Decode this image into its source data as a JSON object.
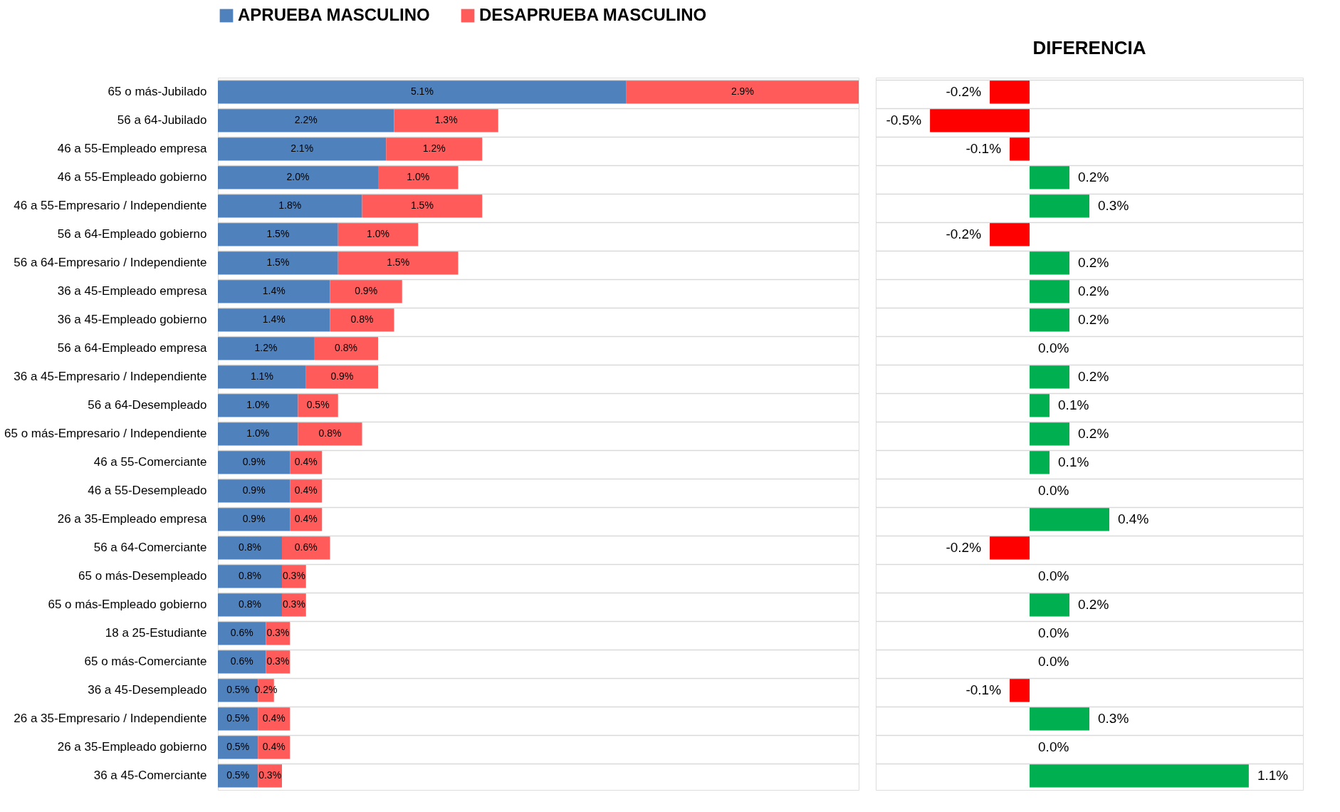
{
  "chart_data": [
    {
      "type": "bar",
      "orientation": "horizontal",
      "stacked": true,
      "legend": "top",
      "grid": "y",
      "tick_labels": "y",
      "data_labels": true,
      "categories": [
        "65 o más-Jubilado",
        "56 a 64-Jubilado",
        "46 a 55-Empleado empresa",
        "46 a 55-Empleado gobierno",
        "46 a 55-Empresario / Independiente",
        "56 a 64-Empleado gobierno",
        "56 a 64-Empresario / Independiente",
        "36 a 45-Empleado empresa",
        "36 a 45-Empleado gobierno",
        "56 a 64-Empleado empresa",
        "36 a 45-Empresario / Independiente",
        "56 a 64-Desempleado",
        "65 o más-Empresario / Independiente",
        "46 a 55-Comerciante",
        "46 a 55-Desempleado",
        "26 a 35-Empleado empresa",
        "56 a 64-Comerciante",
        "65 o más-Desempleado",
        "65 o más-Empleado gobierno",
        "18 a 25-Estudiante",
        "65 o más-Comerciante",
        "36 a 45-Desempleado",
        "26 a 35-Empresario / Independiente",
        "26 a 35-Empleado gobierno",
        "36 a 45-Comerciante"
      ],
      "series": [
        {
          "name": "APRUEBA MASCULINO",
          "color": "#4f81bd",
          "values": [
            5.1,
            2.2,
            2.1,
            2.0,
            1.8,
            1.5,
            1.5,
            1.4,
            1.4,
            1.2,
            1.1,
            1.0,
            1.0,
            0.9,
            0.9,
            0.9,
            0.8,
            0.8,
            0.8,
            0.6,
            0.6,
            0.5,
            0.5,
            0.5,
            0.5
          ],
          "value_labels": [
            "5.1%",
            "2.2%",
            "2.1%",
            "2.0%",
            "1.8%",
            "1.5%",
            "1.5%",
            "1.4%",
            "1.4%",
            "1.2%",
            "1.1%",
            "1.0%",
            "1.0%",
            "0.9%",
            "0.9%",
            "0.9%",
            "0.8%",
            "0.8%",
            "0.8%",
            "0.6%",
            "0.6%",
            "0.5%",
            "0.5%",
            "0.5%",
            "0.5%"
          ]
        },
        {
          "name": "DESAPRUEBA MASCULINO",
          "color": "#ff5b5b",
          "values": [
            2.9,
            1.3,
            1.2,
            1.0,
            1.5,
            1.0,
            1.5,
            0.9,
            0.8,
            0.8,
            0.9,
            0.5,
            0.8,
            0.4,
            0.4,
            0.4,
            0.6,
            0.3,
            0.3,
            0.3,
            0.3,
            0.2,
            0.4,
            0.4,
            0.3
          ],
          "value_labels": [
            "2.9%",
            "1.3%",
            "1.2%",
            "1.0%",
            "1.5%",
            "1.0%",
            "1.5%",
            "0.9%",
            "0.8%",
            "0.8%",
            "0.9%",
            "0.5%",
            "0.8%",
            "0.4%",
            "0.4%",
            "0.4%",
            "0.6%",
            "0.3%",
            "0.3%",
            "0.3%",
            "0.3%",
            "0.2%",
            "0.4%",
            "0.4%",
            "0.3%"
          ]
        }
      ]
    },
    {
      "type": "bar",
      "orientation": "horizontal",
      "title": "DIFERENCIA",
      "grid": "y",
      "tick_labels": false,
      "data_labels": true,
      "categories": [
        null,
        null,
        null,
        null,
        null,
        null,
        null,
        null,
        null,
        null,
        null,
        null,
        null,
        null,
        null,
        null,
        null,
        null,
        null,
        null,
        null,
        null,
        null,
        null,
        null
      ],
      "values": [
        -0.2,
        -0.5,
        -0.1,
        0.2,
        0.3,
        -0.2,
        0.2,
        0.2,
        0.2,
        0.0,
        0.2,
        0.1,
        0.2,
        0.1,
        0.0,
        0.4,
        -0.2,
        0.0,
        0.2,
        0.0,
        0.0,
        -0.1,
        0.3,
        0.0,
        1.1
      ],
      "value_labels": [
        "-0.2%",
        "-0.5%",
        "-0.1%",
        "0.2%",
        "0.3%",
        "-0.2%",
        "0.2%",
        "0.2%",
        "0.2%",
        "0.0%",
        "0.2%",
        "0.1%",
        "0.2%",
        "0.1%",
        "0.0%",
        "0.4%",
        "-0.2%",
        "0.0%",
        "0.2%",
        "0.0%",
        "0.0%",
        "-0.1%",
        "0.3%",
        "0.0%",
        "1.1%"
      ],
      "colors": [
        "#ff0000",
        "#ff0000",
        "#ff0000",
        "#00b050",
        "#00b050",
        "#ff0000",
        "#00b050",
        "#00b050",
        "#00b050",
        "#ff0000",
        "#00b050",
        "#00b050",
        "#00b050",
        "#00b050",
        "#00b050",
        "#00b050",
        "#ff0000",
        "#00b050",
        "#00b050",
        "#ff0000",
        "#00b050",
        "#ff0000",
        "#00b050",
        "#ff0000",
        "#00b050"
      ]
    }
  ]
}
